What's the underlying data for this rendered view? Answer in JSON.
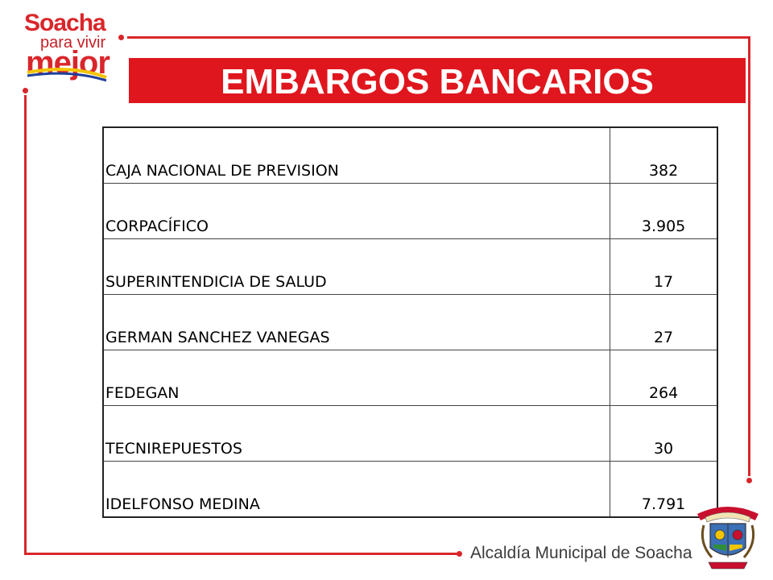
{
  "logo": {
    "line1": "Soacha",
    "line2": "para vivir",
    "line3": "mejor"
  },
  "title": "EMBARGOS BANCARIOS",
  "table": {
    "rows": [
      {
        "entity": "CAJA NACIONAL DE PREVISION",
        "value": "382"
      },
      {
        "entity": "CORPACÍFICO",
        "value": "3.905"
      },
      {
        "entity": "SUPERINTENDICIA DE SALUD",
        "value": "17"
      },
      {
        "entity": "GERMAN SANCHEZ VANEGAS",
        "value": "27"
      },
      {
        "entity": "FEDEGAN",
        "value": "264"
      },
      {
        "entity": "TECNIREPUESTOS",
        "value": "30"
      },
      {
        "entity": "IDELFONSO MEDINA",
        "value": "7.791"
      }
    ]
  },
  "footer": {
    "text": "Alcaldía Municipal de Soacha"
  },
  "colors": {
    "accent": "#d9262b",
    "banner": "#e0161e",
    "footer_text": "#3c3c3c"
  }
}
